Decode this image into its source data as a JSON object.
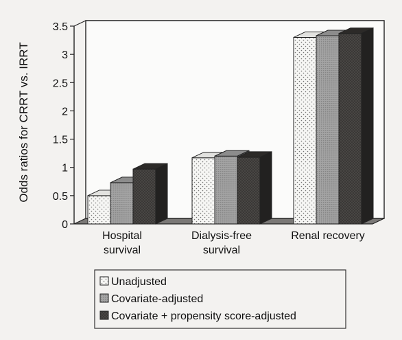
{
  "chart_data": {
    "type": "bar",
    "ylabel": "Odds ratios for CRRT vs. IRRT",
    "ylim": [
      0,
      3.5
    ],
    "yticks": [
      "0",
      "0.5",
      "1",
      "1.5",
      "2",
      "2.5",
      "3",
      "3.5"
    ],
    "categories": [
      [
        "Hospital",
        "survival"
      ],
      [
        "Dialysis-free",
        "survival"
      ],
      [
        "Renal recovery"
      ]
    ],
    "series": [
      {
        "name": "Unadjusted",
        "values": [
          0.5,
          1.17,
          3.3
        ],
        "color": "#f4f4f2",
        "pattern": "dots"
      },
      {
        "name": "Covariate-adjusted",
        "values": [
          0.73,
          1.2,
          3.33
        ],
        "color": "#9e9e9e",
        "pattern": "grid"
      },
      {
        "name": "Covariate + propensity score-adjusted",
        "values": [
          0.97,
          1.18,
          3.37
        ],
        "color": "#3c3a38",
        "pattern": "dark"
      }
    ],
    "grid": false,
    "style": "3d-bars",
    "legend_position": "bottom"
  }
}
